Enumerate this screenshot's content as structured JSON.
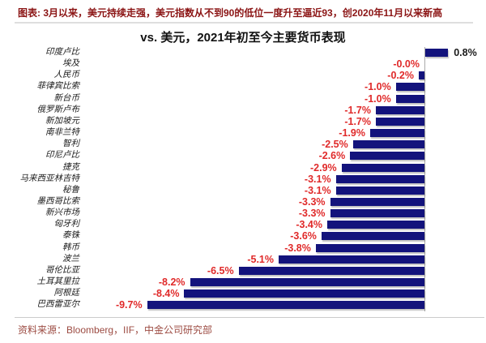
{
  "header": {
    "title": "图表: 3月以来，美元持续走强，美元指数从不到90的低位一度升至逼近93，创2020年11月以来新高"
  },
  "footer": {
    "source": "资料来源：Bloomberg，IIF，中金公司研究部"
  },
  "colors": {
    "bar": "#13137C",
    "negative_value_label": "#E02A2A",
    "positive_value_label": "#1a1a1a",
    "header_text": "#8B1414",
    "source_text": "#9C4B42",
    "axis_line": "#aaaaaa"
  },
  "chart_data": {
    "type": "bar",
    "orientation": "horizontal",
    "title": "vs. 美元，2021年初至今主要货币表现",
    "xlabel": "",
    "ylabel": "",
    "xlim": [
      -10.5,
      2.2
    ],
    "grid": false,
    "legend": false,
    "value_label_position": "outside-end",
    "categories": [
      "印度卢比",
      "埃及",
      "人民币",
      "菲律宾比索",
      "新台币",
      "俄罗斯卢布",
      "新加坡元",
      "南非兰特",
      "智利",
      "印尼卢比",
      "捷克",
      "马来西亚林吉特",
      "秘鲁",
      "墨西哥比索",
      "新兴市场",
      "匈牙利",
      "泰铢",
      "韩币",
      "波兰",
      "哥伦比亚",
      "土耳其里拉",
      "阿根廷",
      "巴西雷亚尔"
    ],
    "values": [
      0.8,
      -0.0,
      -0.2,
      -1.0,
      -1.0,
      -1.7,
      -1.7,
      -1.9,
      -2.5,
      -2.6,
      -2.9,
      -3.1,
      -3.1,
      -3.3,
      -3.3,
      -3.4,
      -3.6,
      -3.8,
      -5.1,
      -6.5,
      -8.2,
      -8.4,
      -9.7
    ],
    "labels": [
      "0.8%",
      "-0.0%",
      "-0.2%",
      "-1.0%",
      "-1.0%",
      "-1.7%",
      "-1.7%",
      "-1.9%",
      "-2.5%",
      "-2.6%",
      "-2.9%",
      "-3.1%",
      "-3.1%",
      "-3.3%",
      "-3.3%",
      "-3.4%",
      "-3.6%",
      "-3.8%",
      "-5.1%",
      "-6.5%",
      "-8.2%",
      "-8.4%",
      "-9.7%"
    ]
  }
}
